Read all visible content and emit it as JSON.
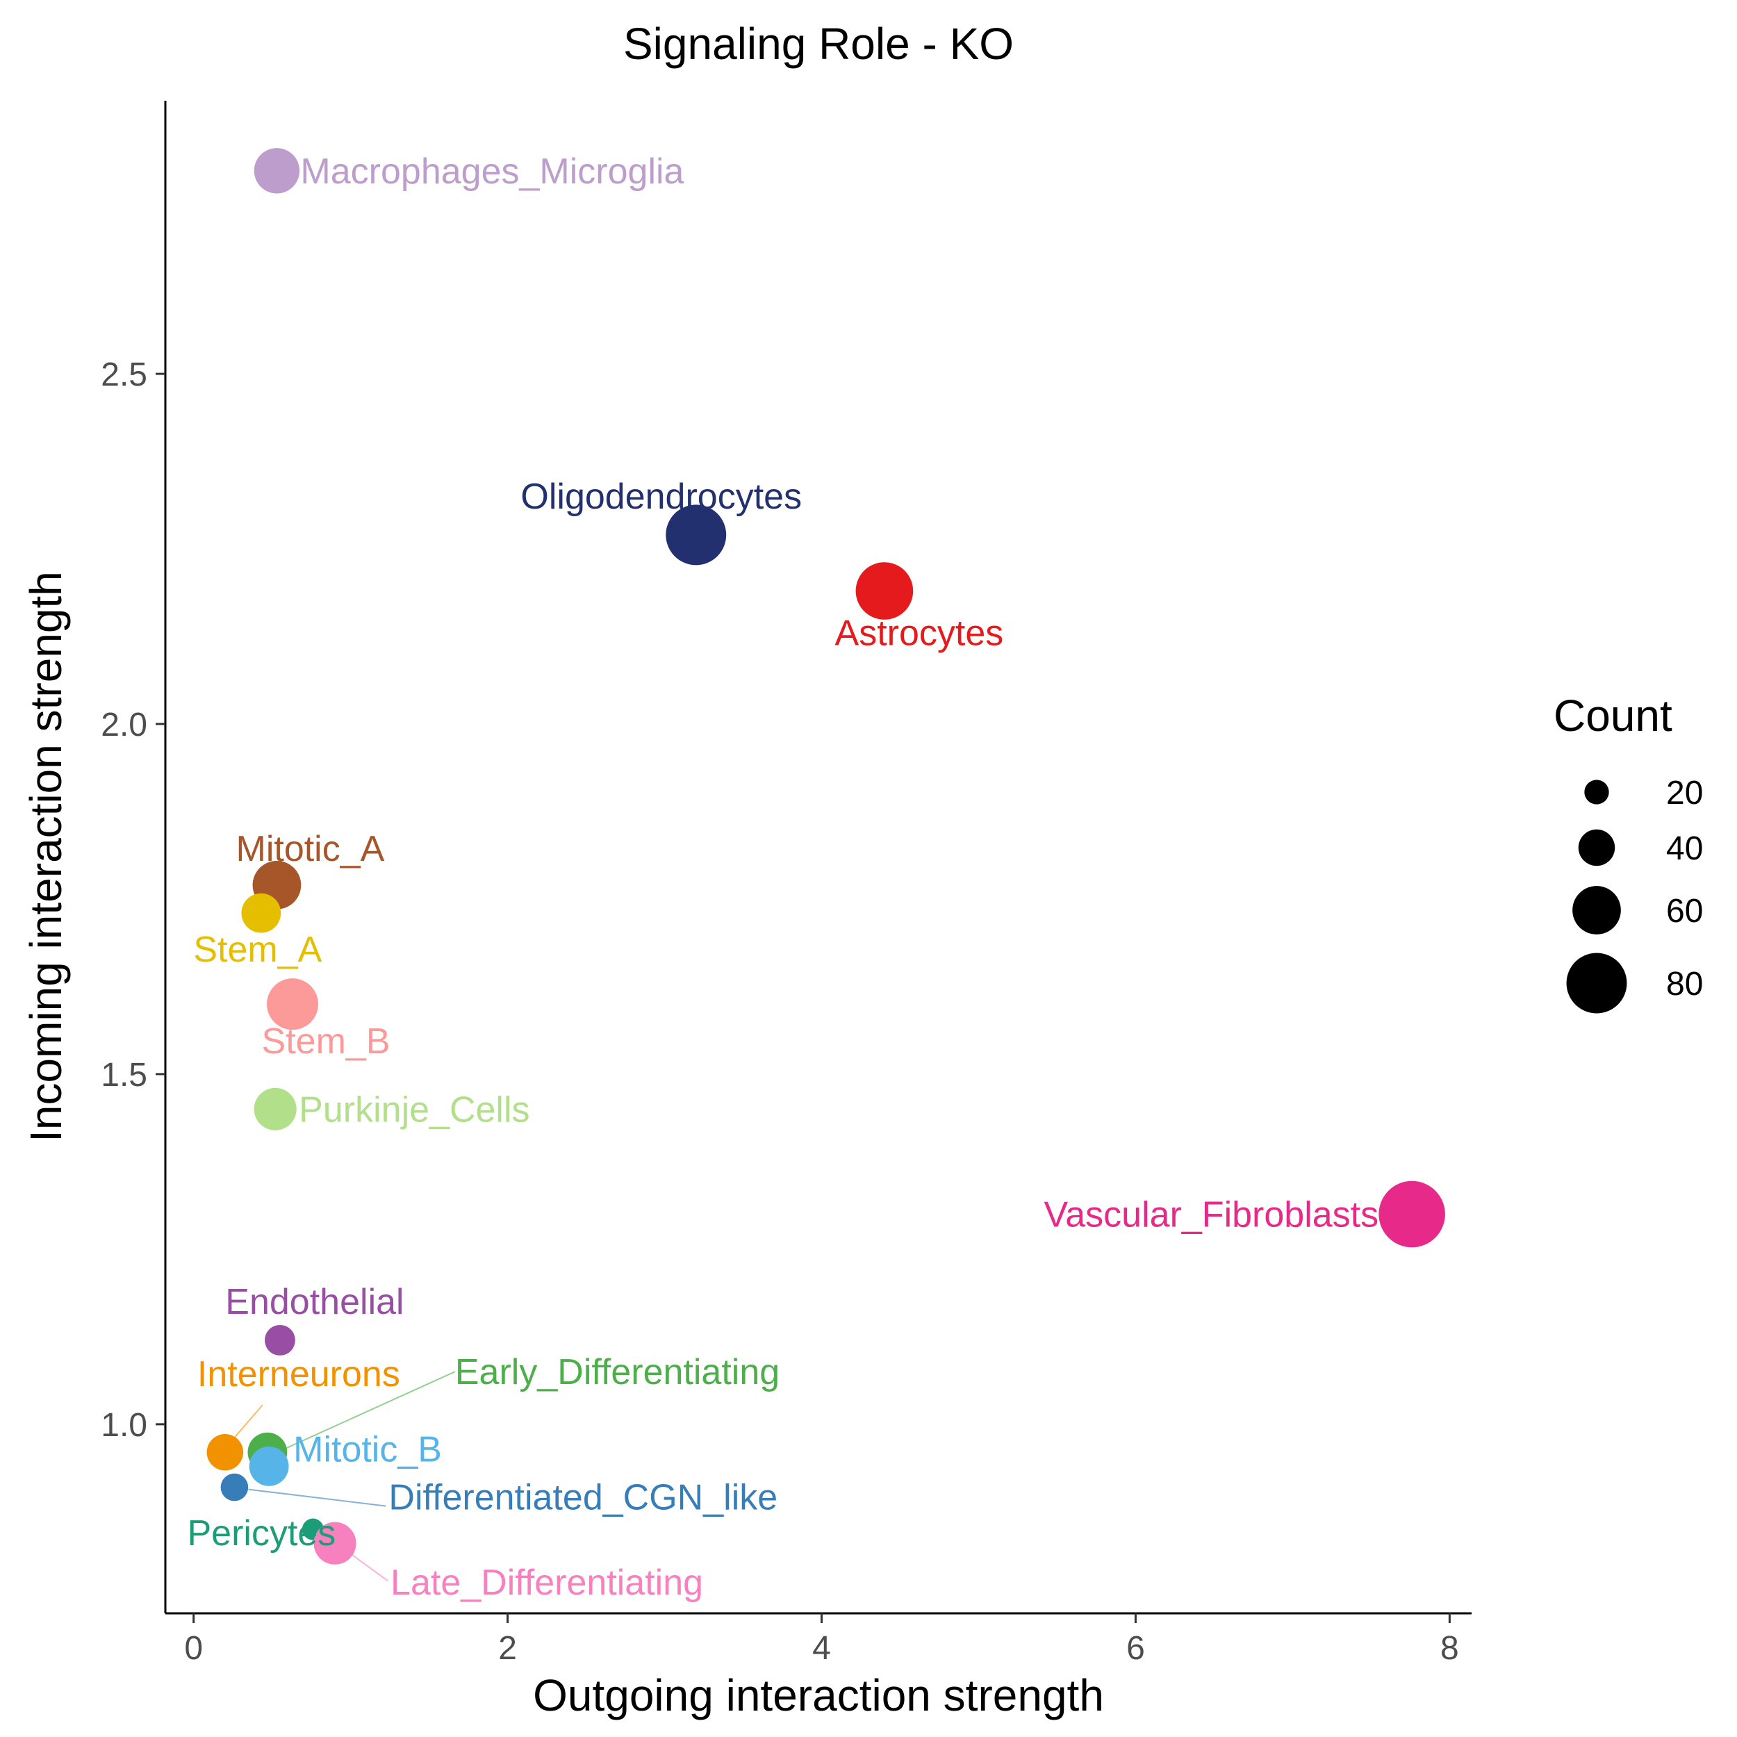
{
  "chart_data": {
    "type": "scatter",
    "title": "Signaling Role - KO",
    "xlabel": "Outgoing interaction strength",
    "ylabel": "Incoming interaction strength",
    "xlim": [
      -0.18,
      8.14
    ],
    "ylim": [
      0.73,
      2.89
    ],
    "xticks": [
      0,
      2,
      4,
      6,
      8
    ],
    "xtick_labels": [
      "0",
      "2",
      "4",
      "6",
      "8"
    ],
    "yticks": [
      1.0,
      1.5,
      2.0,
      2.5
    ],
    "ytick_labels": [
      "1.0",
      "1.5",
      "2.0",
      "2.5"
    ],
    "grid": false,
    "legend": {
      "title": "Count",
      "position": "right",
      "entries": [
        {
          "value": 20,
          "label": "20"
        },
        {
          "value": 40,
          "label": "40"
        },
        {
          "value": 60,
          "label": "60"
        },
        {
          "value": 80,
          "label": "80"
        }
      ]
    },
    "points": [
      {
        "label": "Macrophages_Microglia",
        "x": 0.53,
        "y": 2.79,
        "count": 55,
        "color": "#BC9DCC"
      },
      {
        "label": "Oligodendrocytes",
        "x": 3.2,
        "y": 2.27,
        "count": 80,
        "color": "#23306F"
      },
      {
        "label": "Astrocytes",
        "x": 4.4,
        "y": 2.19,
        "count": 75,
        "color": "#E41A1C"
      },
      {
        "label": "Mitotic_A",
        "x": 0.53,
        "y": 1.77,
        "count": 60,
        "color": "#A65628"
      },
      {
        "label": "Stem_A",
        "x": 0.43,
        "y": 1.73,
        "count": 45,
        "color": "#E6BE00"
      },
      {
        "label": "Stem_B",
        "x": 0.63,
        "y": 1.6,
        "count": 65,
        "color": "#FB9A99"
      },
      {
        "label": "Purkinje_Cells",
        "x": 0.52,
        "y": 1.45,
        "count": 50,
        "color": "#B2DF8A"
      },
      {
        "label": "Vascular_Fibroblasts",
        "x": 7.76,
        "y": 1.3,
        "count": 90,
        "color": "#E7298A"
      },
      {
        "label": "Endothelial",
        "x": 0.55,
        "y": 1.12,
        "count": 30,
        "color": "#984EA3"
      },
      {
        "label": "Interneurons",
        "x": 0.2,
        "y": 0.96,
        "count": 40,
        "color": "#F39200"
      },
      {
        "label": "Early_Differentiating",
        "x": 0.47,
        "y": 0.96,
        "count": 45,
        "color": "#4DAF4A"
      },
      {
        "label": "Mitotic_B",
        "x": 0.48,
        "y": 0.94,
        "count": 45,
        "color": "#56B4E9"
      },
      {
        "label": "Differentiated_CGN_like",
        "x": 0.26,
        "y": 0.91,
        "count": 25,
        "color": "#377EB8"
      },
      {
        "label": "Pericytes",
        "x": 0.76,
        "y": 0.85,
        "count": 15,
        "color": "#1B9E77"
      },
      {
        "label": "Late_Differentiating",
        "x": 0.9,
        "y": 0.83,
        "count": 50,
        "color": "#F781BF"
      }
    ]
  }
}
